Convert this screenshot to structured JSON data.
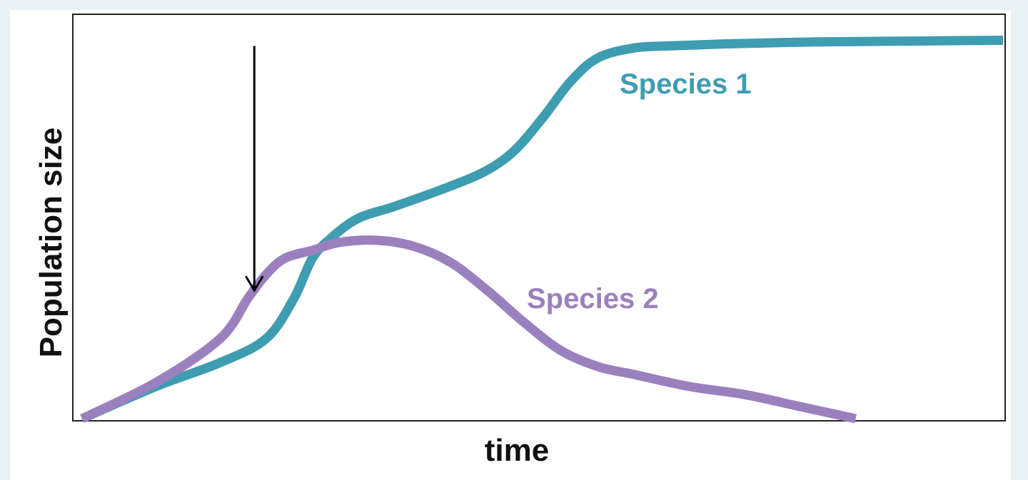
{
  "chart_data": {
    "type": "line",
    "title": "",
    "xlabel": "time",
    "ylabel": "Population size",
    "xlim": [
      0,
      100
    ],
    "ylim": [
      0,
      100
    ],
    "grid": false,
    "legend": "none",
    "series": [
      {
        "name": "Species 1",
        "color": "#3e9db0",
        "x": [
          0,
          8,
          15,
          20,
          23,
          25,
          27,
          30,
          34,
          40,
          44,
          47,
          50,
          53,
          56,
          60,
          64,
          70,
          80,
          90,
          100
        ],
        "y": [
          0,
          8,
          14,
          20,
          30,
          40,
          45,
          50,
          53,
          58,
          62,
          67,
          75,
          84,
          90,
          92.5,
          93,
          93.5,
          94,
          94.2,
          94.4
        ]
      },
      {
        "name": "Species 2",
        "color": "#9b80be",
        "x": [
          0,
          8,
          15,
          18,
          20,
          22,
          25,
          28,
          32,
          36,
          40,
          44,
          48,
          52,
          56,
          60,
          66,
          72,
          78,
          84
        ],
        "y": [
          0,
          9,
          20,
          30,
          36,
          40,
          42,
          44,
          44.5,
          43,
          39,
          32,
          24,
          17,
          13,
          11,
          8,
          6,
          3,
          0
        ]
      }
    ],
    "annotations": [
      {
        "type": "arrow",
        "direction": "down",
        "x": 18.7,
        "y_from": 93,
        "y_to": 32
      }
    ]
  }
}
